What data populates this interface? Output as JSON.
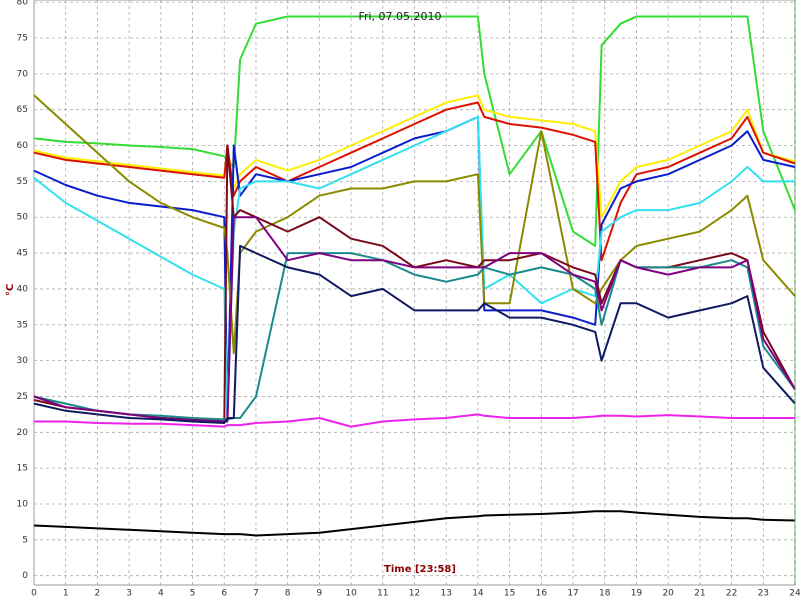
{
  "chart_data": {
    "type": "line",
    "title": "Fri, 07.05.2010",
    "x_label": "Time [23:58]",
    "y_label": "°C",
    "x": [
      0,
      1,
      2,
      3,
      4,
      5,
      6,
      6.1,
      6.3,
      6.5,
      7,
      8,
      9,
      10,
      11,
      12,
      13,
      14,
      14.2,
      15,
      16,
      17,
      17.7,
      17.9,
      18.5,
      19,
      20,
      21,
      22,
      22.5,
      23,
      24
    ],
    "xlim": [
      0,
      24
    ],
    "xticks": [
      0,
      1,
      2,
      3,
      4,
      5,
      6,
      7,
      8,
      9,
      10,
      11,
      12,
      13,
      14,
      15,
      16,
      17,
      18,
      19,
      20,
      21,
      22,
      23,
      24
    ],
    "ylim": [
      -1.3,
      80.3
    ],
    "yticks": [
      0,
      5,
      10,
      15,
      20,
      25,
      30,
      35,
      40,
      45,
      50,
      55,
      60,
      65,
      70,
      75,
      80
    ],
    "grid": true,
    "series": [
      {
        "color": "#33dd33",
        "values": [
          61,
          60.5,
          60.3,
          60,
          59.8,
          59.5,
          58.5,
          58,
          57,
          72,
          77,
          78,
          78,
          78,
          78,
          78,
          78,
          78,
          70,
          56,
          62,
          48,
          46,
          74,
          77,
          78,
          78,
          78,
          78,
          78,
          62,
          51
        ]
      },
      {
        "color": "#ffee00",
        "values": [
          59.3,
          58.3,
          57.8,
          57.3,
          56.8,
          56.3,
          55.8,
          60,
          54,
          56,
          58,
          56.5,
          58,
          60,
          62,
          64,
          66,
          67,
          65,
          64,
          63.5,
          63,
          62,
          50,
          55,
          57,
          58,
          60,
          62,
          65,
          59,
          57.8
        ]
      },
      {
        "color": "#dd1100",
        "values": [
          59,
          58,
          57.5,
          57,
          56.5,
          56,
          55.5,
          60,
          53,
          55,
          57,
          55,
          57,
          59,
          61,
          63,
          65,
          66,
          64,
          63,
          62.5,
          61.5,
          60.5,
          44,
          52,
          56,
          57,
          59,
          61,
          64,
          59,
          57.5
        ]
      },
      {
        "color": "#0a1ecc",
        "values": [
          56.5,
          54.5,
          53,
          52,
          51.5,
          51,
          50,
          22,
          60,
          53,
          56,
          55,
          56,
          57,
          59,
          61,
          62,
          64,
          37,
          37,
          37,
          36,
          35,
          49,
          54,
          55,
          56,
          58,
          60,
          62,
          58,
          57
        ]
      },
      {
        "color": "#33e0ee",
        "values": [
          55.5,
          52,
          49.5,
          47,
          44.5,
          42,
          40,
          23,
          48,
          54,
          55,
          55,
          54,
          56,
          58,
          60,
          62,
          64,
          40,
          42,
          38,
          40,
          39,
          48,
          50,
          51,
          51,
          52,
          55,
          57,
          55,
          55
        ]
      },
      {
        "color": "#8b8b00",
        "values": [
          67,
          63,
          59,
          55,
          52,
          50,
          48.5,
          45,
          31,
          45,
          48,
          50,
          53,
          54,
          54,
          55,
          55,
          56,
          38,
          38,
          62,
          40,
          38,
          40,
          44,
          46,
          47,
          48,
          51,
          53,
          44,
          39
        ]
      },
      {
        "color": "#7a0a1a",
        "values": [
          24.5,
          23.5,
          23,
          22.5,
          22,
          21.8,
          21.5,
          60,
          50,
          51,
          50,
          48,
          50,
          47,
          46,
          43,
          44,
          43,
          44,
          44,
          45,
          43,
          42,
          38,
          44,
          43,
          43,
          44,
          45,
          44,
          34,
          26
        ]
      },
      {
        "color": "#1a8a8a",
        "values": [
          25,
          24,
          23,
          22.5,
          22.3,
          22,
          21.8,
          21.8,
          22,
          22,
          25,
          45,
          45,
          45,
          44,
          42,
          41,
          42,
          43,
          42,
          43,
          42,
          40,
          35,
          44,
          43,
          43,
          43,
          44,
          43,
          32,
          26
        ]
      },
      {
        "color": "#800080",
        "values": [
          25,
          23.5,
          23,
          22.5,
          22,
          21.7,
          21.5,
          21.5,
          50,
          50,
          50,
          44,
          45,
          44,
          44,
          43,
          43,
          43,
          43,
          45,
          45,
          42,
          41,
          37,
          44,
          43,
          42,
          43,
          43,
          44,
          33,
          26
        ]
      },
      {
        "color": "#101a60",
        "values": [
          24,
          23,
          22.5,
          22,
          21.8,
          21.5,
          21.3,
          22,
          22,
          46,
          45,
          43,
          42,
          39,
          40,
          37,
          37,
          37,
          38,
          36,
          36,
          35,
          34,
          30,
          38,
          38,
          36,
          37,
          38,
          39,
          29,
          24
        ]
      },
      {
        "color": "#ee22ee",
        "values": [
          21.5,
          21.5,
          21.3,
          21.2,
          21.2,
          21,
          20.8,
          21,
          21,
          21,
          21.3,
          21.5,
          22,
          20.8,
          21.5,
          21.8,
          22,
          22.5,
          22.3,
          22,
          22,
          22,
          22.2,
          22.3,
          22.3,
          22.2,
          22.4,
          22.2,
          22,
          22,
          22,
          22
        ]
      },
      {
        "color": "#000000",
        "values": [
          7,
          6.8,
          6.6,
          6.4,
          6.2,
          6,
          5.8,
          5.8,
          5.8,
          5.8,
          5.6,
          5.8,
          6,
          6.5,
          7,
          7.5,
          8,
          8.3,
          8.4,
          8.5,
          8.6,
          8.8,
          9,
          9,
          9,
          8.8,
          8.5,
          8.2,
          8,
          8,
          7.8,
          7.7
        ]
      }
    ]
  }
}
